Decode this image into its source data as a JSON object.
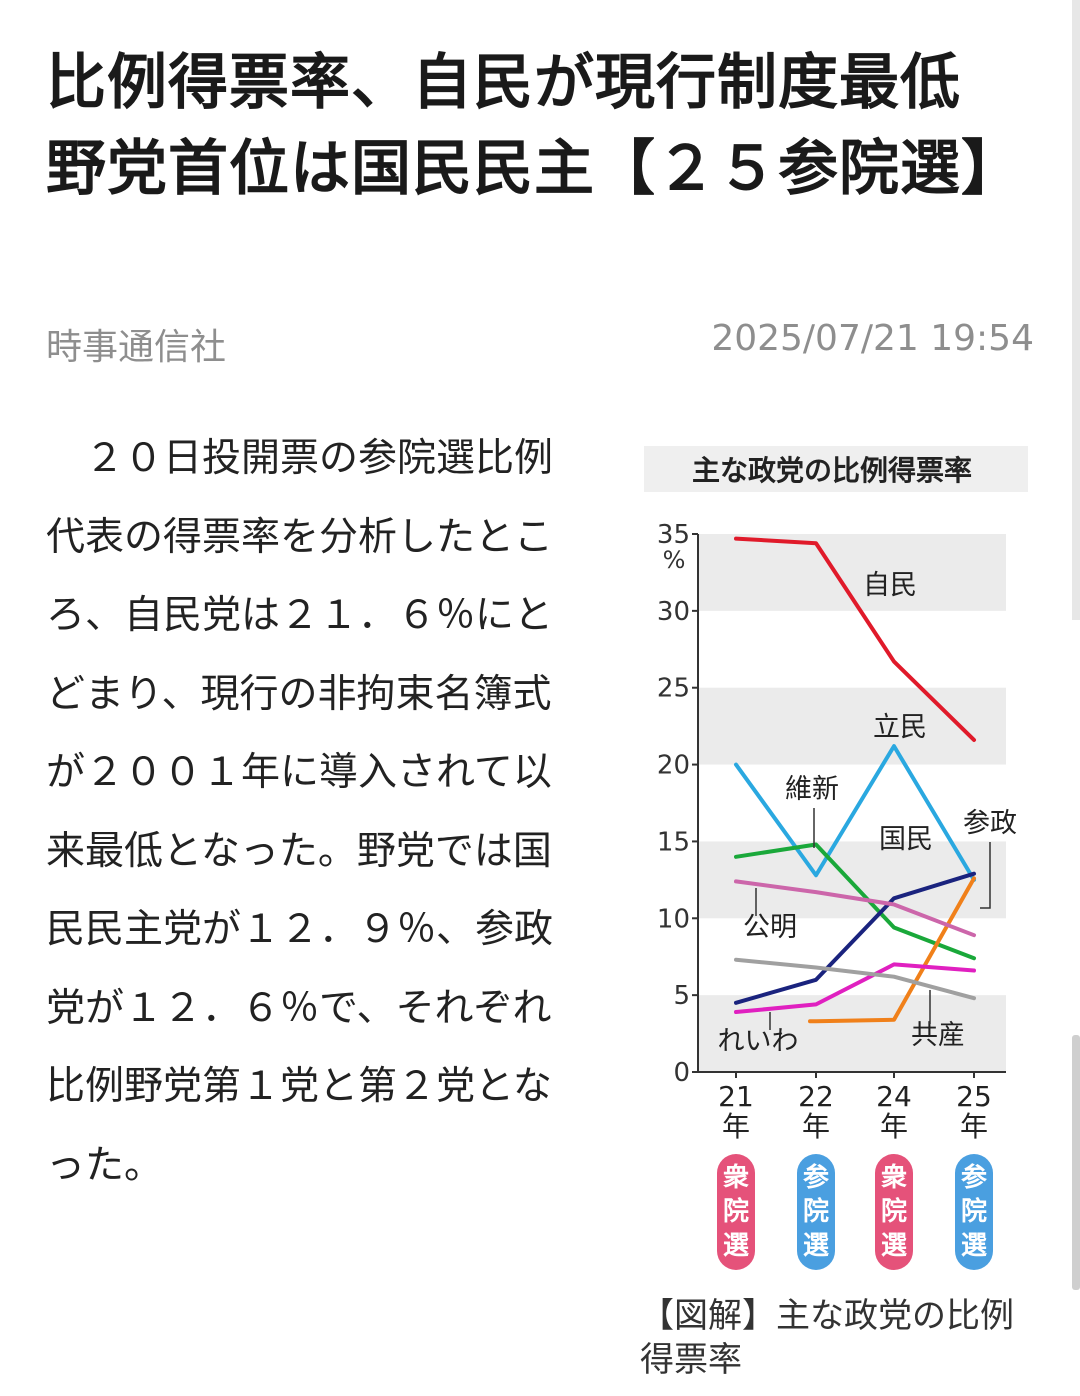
{
  "article": {
    "headline": "比例得票率、自民が現行制度最低　野党首位は国民民主【２５参院選】",
    "source": "時事通信社",
    "timestamp": "2025/07/21 19:54",
    "body": "　２０日投開票の参院選比例代表の得票率を分析したところ、自民党は２１．６％にとどまり、現行の非拘束名簿式が２００１年に導入されて以来最低となった。野党では国民民主党が１２．９％、参政党が１２．６％で、それぞれ比例野党第１党と第２党となった。",
    "caption": "【図解】主な政党の比例得票率"
  },
  "chart_data": {
    "type": "line",
    "title": "主な政党の比例得票率",
    "unit": "%",
    "ylim": [
      0,
      35
    ],
    "yticks": [
      "0",
      "5",
      "10",
      "15",
      "20",
      "25",
      "30",
      "35"
    ],
    "categories": [
      "21\n年",
      "22\n年",
      "24\n年",
      "25\n年"
    ],
    "election_types": [
      "衆院選",
      "参院選",
      "衆院選",
      "参院選"
    ],
    "election_colors": [
      "#e5527a",
      "#4a9fe0",
      "#e5527a",
      "#4a9fe0"
    ],
    "series": [
      {
        "name": "自民",
        "color": "#e01a2a",
        "values": [
          34.7,
          34.4,
          26.7,
          21.6
        ]
      },
      {
        "name": "立民",
        "color": "#2aa8e0",
        "values": [
          20.0,
          12.8,
          21.2,
          12.5
        ]
      },
      {
        "name": "維新",
        "color": "#1aa83a",
        "values": [
          14.0,
          14.8,
          9.4,
          7.4
        ]
      },
      {
        "name": "国民",
        "color": "#1a237e",
        "values": [
          4.5,
          6.0,
          11.3,
          12.9
        ]
      },
      {
        "name": "参政",
        "color": "#f0801a",
        "values": [
          null,
          3.3,
          3.4,
          12.6
        ]
      },
      {
        "name": "公明",
        "color": "#cc66aa",
        "values": [
          12.4,
          11.7,
          10.9,
          8.9
        ]
      },
      {
        "name": "れいわ",
        "color": "#e020c0",
        "values": [
          3.9,
          4.4,
          7.0,
          6.6
        ]
      },
      {
        "name": "共産",
        "color": "#a0a0a0",
        "values": [
          7.3,
          6.8,
          6.2,
          4.8
        ]
      }
    ]
  }
}
